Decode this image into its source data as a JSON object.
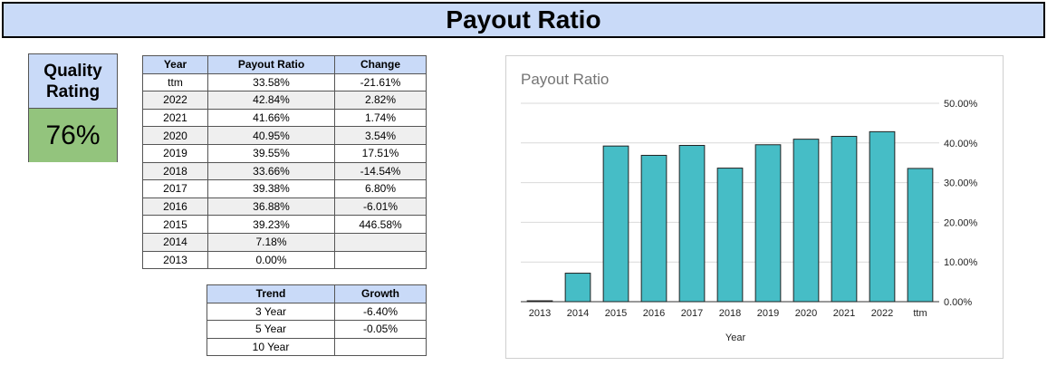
{
  "page": {
    "title": "Payout Ratio"
  },
  "quality": {
    "label": "Quality\nRating",
    "value": "76%"
  },
  "year_table": {
    "headers": [
      "Year",
      "Payout Ratio",
      "Change"
    ],
    "rows": [
      [
        "ttm",
        "33.58%",
        "-21.61%"
      ],
      [
        "2022",
        "42.84%",
        "2.82%"
      ],
      [
        "2021",
        "41.66%",
        "1.74%"
      ],
      [
        "2020",
        "40.95%",
        "3.54%"
      ],
      [
        "2019",
        "39.55%",
        "17.51%"
      ],
      [
        "2018",
        "33.66%",
        "-14.54%"
      ],
      [
        "2017",
        "39.38%",
        "6.80%"
      ],
      [
        "2016",
        "36.88%",
        "-6.01%"
      ],
      [
        "2015",
        "39.23%",
        "446.58%"
      ],
      [
        "2014",
        "7.18%",
        ""
      ],
      [
        "2013",
        "0.00%",
        ""
      ]
    ]
  },
  "trend_table": {
    "headers": [
      "Trend",
      "Growth"
    ],
    "rows": [
      [
        "3 Year",
        "-6.40%"
      ],
      [
        "5 Year",
        "-0.05%"
      ],
      [
        "10 Year",
        ""
      ]
    ]
  },
  "chart_data": {
    "type": "bar",
    "title": "Payout Ratio",
    "xlabel": "Year",
    "ylabel": "",
    "categories": [
      "2013",
      "2014",
      "2015",
      "2016",
      "2017",
      "2018",
      "2019",
      "2020",
      "2021",
      "2022",
      "ttm"
    ],
    "values": [
      0.0,
      7.18,
      39.23,
      36.88,
      39.38,
      33.66,
      39.55,
      40.95,
      41.66,
      42.84,
      33.58
    ],
    "ylim": [
      0,
      50
    ],
    "yticks": [
      "0.00%",
      "10.00%",
      "20.00%",
      "30.00%",
      "40.00%",
      "50.00%"
    ],
    "y_axis_side": "right",
    "grid": true,
    "legend": "none",
    "bar_color": "#46bdc6"
  }
}
